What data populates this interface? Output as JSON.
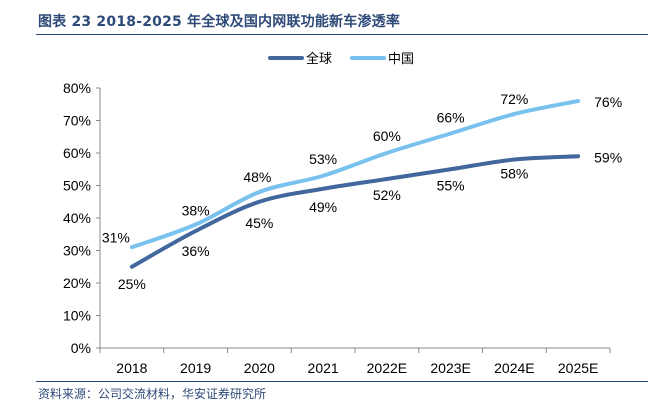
{
  "figure": {
    "title": "图表 23 2018-2025 年全球及国内网联功能新车渗透率",
    "source": "资料来源：公司交流材料，华安证券研究所"
  },
  "chart_data": {
    "type": "line",
    "title": "2018-2025 年全球及国内网联功能新车渗透率",
    "xlabel": "",
    "ylabel": "",
    "categories": [
      "2018",
      "2019",
      "2020",
      "2021",
      "2022E",
      "2023E",
      "2024E",
      "2025E"
    ],
    "ylim": [
      0,
      80
    ],
    "yticks": [
      "0%",
      "10%",
      "20%",
      "30%",
      "40%",
      "50%",
      "60%",
      "70%",
      "80%"
    ],
    "legend_position": "top-center",
    "series": [
      {
        "name": "全球",
        "color": "#41679c",
        "values": [
          25,
          36,
          45,
          49,
          52,
          55,
          58,
          59
        ],
        "labels": [
          "25%",
          "36%",
          "45%",
          "49%",
          "52%",
          "55%",
          "58%",
          "59%"
        ]
      },
      {
        "name": "中国",
        "color": "#79c2ee",
        "values": [
          31,
          38,
          48,
          53,
          60,
          66,
          72,
          76
        ],
        "labels": [
          "31%",
          "38%",
          "48%",
          "53%",
          "60%",
          "66%",
          "72%",
          "76%"
        ]
      }
    ]
  }
}
